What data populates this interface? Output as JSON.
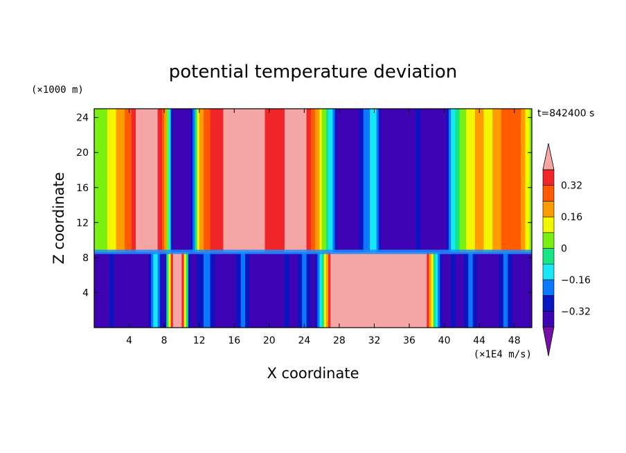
{
  "chart_data": {
    "type": "heatmap",
    "title": "potential temperature deviation",
    "xlabel": "X coordinate",
    "ylabel": "Z coordinate",
    "x_unit": "(×1E4 m/s)",
    "y_unit": "(×1000 m)",
    "time_label": "t=842400 s",
    "xlim": [
      0,
      50
    ],
    "ylim": [
      0,
      25
    ],
    "x_ticks": [
      4,
      8,
      12,
      16,
      20,
      24,
      28,
      32,
      36,
      40,
      44,
      48
    ],
    "y_ticks": [
      4,
      8,
      12,
      16,
      20,
      24
    ],
    "colorbar": {
      "levels": [
        -0.4,
        -0.32,
        -0.24,
        -0.16,
        -0.08,
        0,
        0.08,
        0.16,
        0.24,
        0.32,
        0.4
      ],
      "labels": [
        "0.32",
        "0.16",
        "0",
        "−0.16",
        "−0.32"
      ],
      "label_values": [
        0.32,
        0.16,
        0,
        -0.16,
        -0.32
      ],
      "colors": [
        "#7a0fa8",
        "#3e04b4",
        "#0a14c0",
        "#0a78ff",
        "#16e8f6",
        "#15e584",
        "#7af012",
        "#f2f700",
        "#ff9d00",
        "#ff5a00",
        "#f0262a",
        "#f6a6a4"
      ],
      "extend": "both"
    },
    "upper_layer": {
      "z_range": [
        8.6,
        25
      ],
      "column_x": [
        0,
        1,
        2,
        3,
        4,
        5,
        6,
        7,
        8,
        9,
        10,
        11,
        12,
        13,
        14,
        15,
        16,
        17,
        18,
        19,
        20,
        21,
        22,
        23,
        24,
        25,
        26,
        27,
        28,
        29,
        30,
        31,
        32,
        33,
        34,
        35,
        36,
        37,
        38,
        39,
        40,
        41,
        42,
        43,
        44,
        45,
        46,
        47,
        48,
        49,
        50
      ],
      "column_values": [
        0.0,
        0.04,
        0.12,
        0.2,
        0.3,
        0.42,
        0.42,
        0.42,
        0.3,
        -0.38,
        -0.38,
        -0.38,
        0.2,
        0.3,
        0.36,
        0.42,
        0.42,
        0.42,
        0.42,
        0.42,
        0.38,
        0.36,
        0.42,
        0.42,
        0.42,
        0.3,
        0.1,
        -0.12,
        -0.35,
        -0.38,
        -0.38,
        -0.2,
        -0.1,
        -0.38,
        -0.38,
        -0.38,
        -0.38,
        -0.3,
        -0.38,
        -0.38,
        -0.38,
        -0.12,
        0.04,
        0.12,
        0.2,
        0.12,
        0.2,
        0.28,
        0.32,
        0.2,
        0.06
      ]
    },
    "lower_layer": {
      "z_range": [
        0,
        8.6
      ],
      "column_x": [
        0,
        1,
        2,
        3,
        4,
        5,
        6,
        7,
        8,
        9,
        10,
        11,
        12,
        13,
        14,
        15,
        16,
        17,
        18,
        19,
        20,
        21,
        22,
        23,
        24,
        25,
        26,
        27,
        28,
        29,
        30,
        31,
        32,
        33,
        34,
        35,
        36,
        37,
        38,
        39,
        40,
        41,
        42,
        43,
        44,
        45,
        46,
        47,
        48,
        49,
        50
      ],
      "column_values": [
        -0.38,
        -0.38,
        -0.3,
        -0.38,
        -0.38,
        -0.38,
        -0.38,
        -0.1,
        -0.38,
        0.42,
        0.42,
        -0.38,
        -0.3,
        -0.2,
        -0.38,
        -0.38,
        -0.38,
        -0.2,
        -0.38,
        -0.38,
        -0.38,
        -0.38,
        -0.3,
        -0.38,
        -0.2,
        -0.38,
        -0.1,
        0.42,
        0.42,
        0.42,
        0.42,
        0.42,
        0.42,
        0.42,
        0.42,
        0.42,
        0.42,
        0.42,
        0.42,
        -0.1,
        -0.38,
        -0.3,
        -0.38,
        -0.16,
        -0.38,
        -0.38,
        -0.38,
        -0.2,
        -0.38,
        -0.38,
        -0.38
      ]
    }
  }
}
